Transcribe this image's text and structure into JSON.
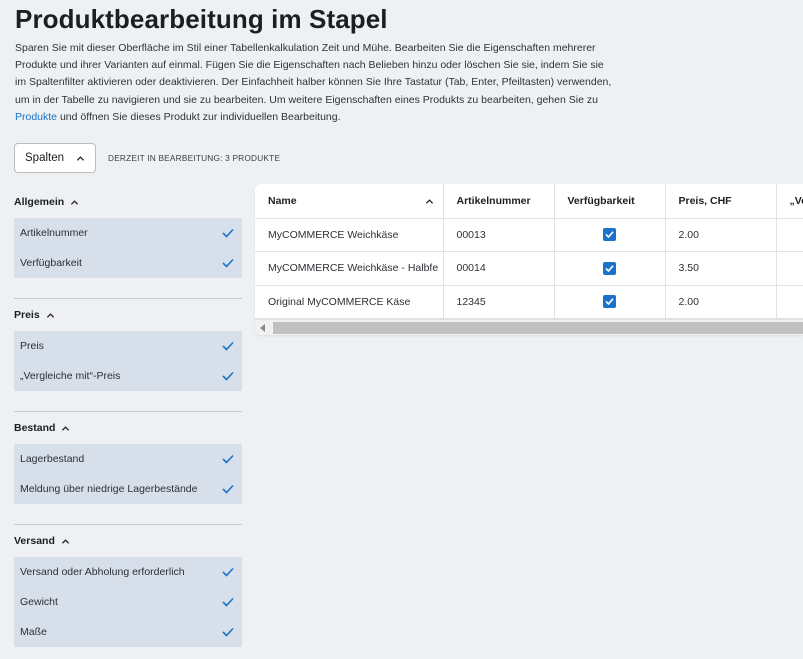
{
  "page": {
    "title": "Produktbearbeitung im Stapel",
    "description_before_link": "Sparen Sie mit dieser Oberfläche im Stil einer Tabellenkalkulation Zeit und Mühe. Bearbeiten Sie die Eigenschaften mehrerer Produkte und ihrer Varianten auf einmal. Fügen Sie die Eigenschaften nach Belieben hinzu oder löschen Sie sie, indem Sie sie im Spaltenfilter aktivieren oder deaktivieren. Der Einfachheit halber können Sie Ihre Tastatur (Tab, Enter, Pfeiltasten) verwenden, um in der Tabelle zu navigieren und sie zu bearbeiten. Um weitere Eigenschaften eines Produkts zu bearbeiten, gehen Sie zu ",
    "description_link": "Produkte",
    "description_after_link": " und öffnen Sie dieses Produkt zur individuellen Bearbeitung."
  },
  "toolbar": {
    "columns_button": "Spalten",
    "editing_status": "DERZEIT IN BEARBEITUNG: 3 PRODUKTE"
  },
  "column_groups": [
    {
      "label": "Allgemein",
      "items": [
        "Artikelnummer",
        "Verfügbarkeit"
      ]
    },
    {
      "label": "Preis",
      "items": [
        "Preis",
        "„Vergleiche mit“-Preis"
      ]
    },
    {
      "label": "Bestand",
      "items": [
        "Lagerbestand",
        "Meldung über niedrige Lagerbestände"
      ]
    },
    {
      "label": "Versand",
      "items": [
        "Versand oder Abholung erforderlich",
        "Gewicht",
        "Maße"
      ]
    }
  ],
  "table": {
    "headers": [
      "Name",
      "Artikelnummer",
      "Verfügbarkeit",
      "Preis, CHF",
      "„Ve"
    ],
    "rows": [
      {
        "name": "MyCOMMERCE Weichkäse",
        "sku": "00013",
        "available": true,
        "price": "2.00",
        "compare": ""
      },
      {
        "name": "MyCOMMERCE Weichkäse - Halbfe",
        "sku": "00014",
        "available": true,
        "price": "3.50",
        "compare": ""
      },
      {
        "name": "Original MyCOMMERCE Käse",
        "sku": "12345",
        "available": true,
        "price": "2.00",
        "compare": ""
      }
    ]
  },
  "colors": {
    "accent": "#1a73c9",
    "panel_item_bg": "#d7dfea",
    "page_bg": "#eef0f2"
  },
  "icons": {
    "chevron": "chevron-up-icon",
    "check": "checkmark-icon",
    "checkbox": "checkbox-checked-icon",
    "scroll_left": "scroll-left-arrow-icon"
  }
}
